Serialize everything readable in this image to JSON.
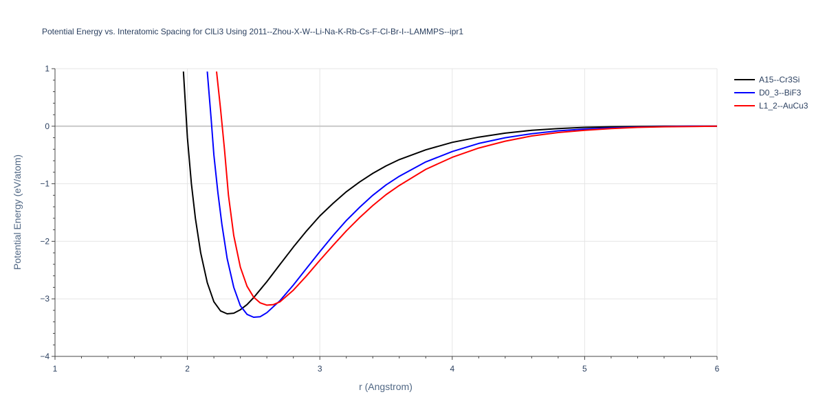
{
  "chart_data": {
    "type": "line",
    "title": "Potential Energy vs. Interatomic Spacing for ClLi3 Using 2011--Zhou-X-W--Li-Na-K-Rb-Cs-F-Cl-Br-I--LAMMPS--ipr1",
    "xlabel": "r (Angstrom)",
    "ylabel": "Potential Energy (eV/atom)",
    "xlim": [
      1,
      6
    ],
    "ylim": [
      -4,
      1
    ],
    "xticks": [
      1,
      2,
      3,
      4,
      5,
      6
    ],
    "yticks": [
      1,
      0,
      -1,
      -2,
      -3,
      -4
    ],
    "ytick_labels": [
      "1",
      "0",
      "−1",
      "−2",
      "−3",
      "−4"
    ],
    "grid": true,
    "legend_position": "top-right",
    "series": [
      {
        "name": "A15--Cr3Si",
        "color": "#000000",
        "x": [
          1.97,
          2.0,
          2.03,
          2.06,
          2.1,
          2.15,
          2.2,
          2.25,
          2.3,
          2.35,
          2.4,
          2.45,
          2.5,
          2.6,
          2.7,
          2.8,
          2.9,
          3.0,
          3.1,
          3.2,
          3.3,
          3.4,
          3.5,
          3.6,
          3.8,
          4.0,
          4.2,
          4.4,
          4.6,
          4.8,
          5.0,
          5.2,
          5.4,
          5.6,
          5.8,
          6.0
        ],
        "y": [
          0.95,
          -0.2,
          -1.0,
          -1.6,
          -2.2,
          -2.72,
          -3.05,
          -3.21,
          -3.26,
          -3.25,
          -3.19,
          -3.1,
          -2.98,
          -2.7,
          -2.4,
          -2.1,
          -1.82,
          -1.56,
          -1.34,
          -1.14,
          -0.97,
          -0.82,
          -0.69,
          -0.58,
          -0.41,
          -0.28,
          -0.19,
          -0.12,
          -0.07,
          -0.04,
          -0.02,
          -0.01,
          -0.005,
          0.0,
          0.0,
          0.0
        ]
      },
      {
        "name": "D0_3--BiF3",
        "color": "#0000ff",
        "x": [
          2.15,
          2.18,
          2.2,
          2.23,
          2.26,
          2.3,
          2.35,
          2.4,
          2.45,
          2.5,
          2.55,
          2.6,
          2.7,
          2.8,
          2.9,
          3.0,
          3.1,
          3.2,
          3.3,
          3.4,
          3.5,
          3.6,
          3.8,
          4.0,
          4.2,
          4.4,
          4.6,
          4.8,
          5.0,
          5.2,
          5.4,
          5.6,
          5.8,
          6.0
        ],
        "y": [
          0.95,
          0.1,
          -0.5,
          -1.15,
          -1.7,
          -2.3,
          -2.8,
          -3.12,
          -3.27,
          -3.32,
          -3.31,
          -3.24,
          -3.03,
          -2.76,
          -2.47,
          -2.18,
          -1.9,
          -1.64,
          -1.41,
          -1.2,
          -1.02,
          -0.87,
          -0.62,
          -0.44,
          -0.3,
          -0.2,
          -0.13,
          -0.08,
          -0.05,
          -0.03,
          -0.015,
          -0.005,
          0.0,
          0.0
        ]
      },
      {
        "name": "L1_2--AuCu3",
        "color": "#ff0000",
        "x": [
          2.22,
          2.25,
          2.28,
          2.31,
          2.35,
          2.4,
          2.45,
          2.5,
          2.55,
          2.6,
          2.65,
          2.7,
          2.8,
          2.9,
          3.0,
          3.1,
          3.2,
          3.3,
          3.4,
          3.5,
          3.6,
          3.8,
          4.0,
          4.2,
          4.4,
          4.6,
          4.8,
          5.0,
          5.2,
          5.4,
          5.6,
          5.8,
          6.0
        ],
        "y": [
          0.95,
          0.3,
          -0.4,
          -1.2,
          -1.9,
          -2.45,
          -2.78,
          -2.97,
          -3.07,
          -3.11,
          -3.1,
          -3.05,
          -2.85,
          -2.6,
          -2.33,
          -2.07,
          -1.82,
          -1.59,
          -1.38,
          -1.19,
          -1.03,
          -0.75,
          -0.54,
          -0.38,
          -0.26,
          -0.17,
          -0.11,
          -0.07,
          -0.04,
          -0.02,
          -0.01,
          -0.005,
          0.0
        ]
      }
    ]
  }
}
